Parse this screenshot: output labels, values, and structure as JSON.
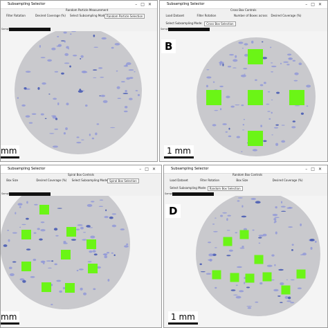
{
  "panels": [
    {
      "title": "Subsampling Selector",
      "heading": "Random Particle Measurement",
      "controls": [
        "Filter Rotation",
        "Desired Coverage (%)",
        "Select Subsampling Mode:",
        "Random Particle Selection"
      ],
      "sample": "Sample",
      "scale": "mm"
    },
    {
      "title": "Subsampling Selector",
      "heading": "Cross Box Controls",
      "controls": [
        "Load Dataset",
        "Filter Rotation",
        "Number of Boxes across",
        "Desired Coverage (%)",
        "Select Subsampling Mode:",
        "Cross Box Selection"
      ],
      "sample": "Sample",
      "label": "B",
      "scale": "1 mm"
    },
    {
      "title": "Subsampling Selector",
      "heading": "Spiral Box Controls",
      "controls": [
        "Box Size",
        "Desired Coverage (%)",
        "Select Subsampling Mode:",
        "Spiral Box Selection"
      ],
      "sample": "Sample",
      "scale": "mm"
    },
    {
      "title": "Subsampling Selector",
      "heading": "Random Box Controls",
      "controls": [
        "Load Dataset",
        "Filter Rotation",
        "Box Size",
        "Desired Coverage (%)",
        "Select Subsampling Mode:",
        "Random Box Selection"
      ],
      "sample": "Sample",
      "label": "D",
      "scale": "1 mm"
    }
  ]
}
